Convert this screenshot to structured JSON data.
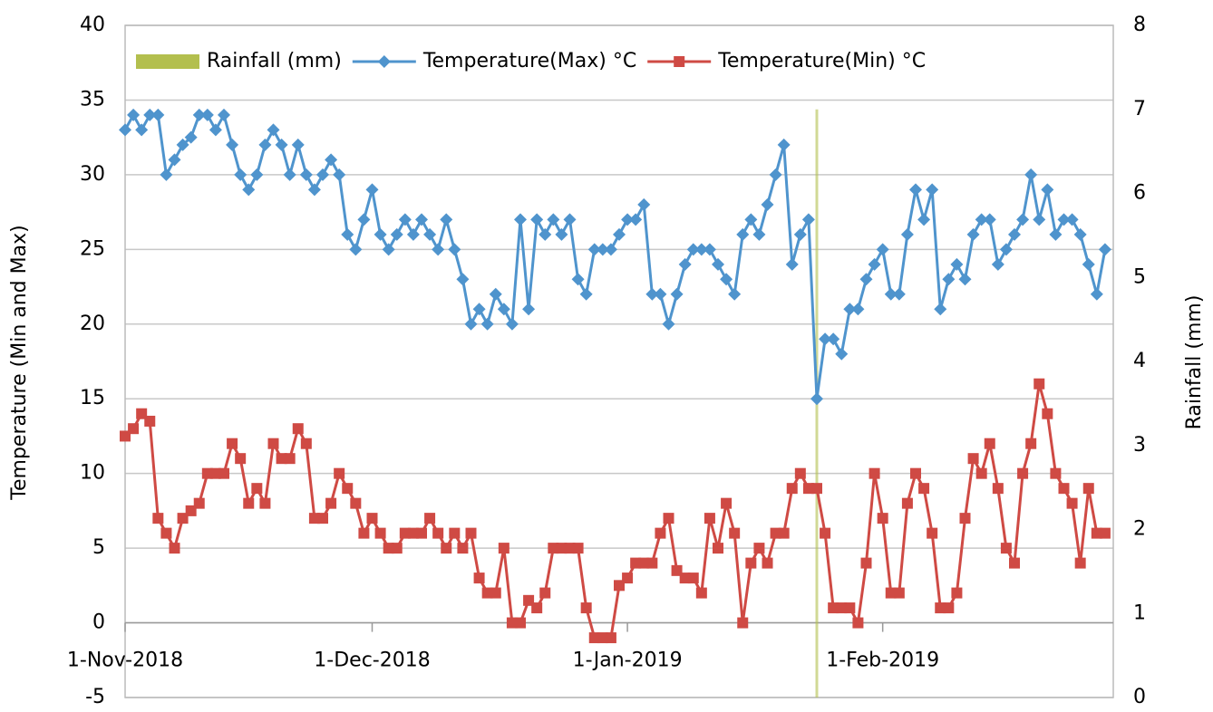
{
  "chart_data": {
    "type": "line",
    "xlabel": null,
    "ylabel": "Temperature (Min and Max)",
    "y2label": "Rainfall (mm)",
    "xlim": [
      0,
      120
    ],
    "xticks": [
      {
        "value": 0,
        "label": "1-Nov-2018"
      },
      {
        "value": 30,
        "label": "1-Dec-2018"
      },
      {
        "value": 61,
        "label": "1-Jan-2019"
      },
      {
        "value": 92,
        "label": "1-Feb-2019"
      }
    ],
    "ylim": [
      -5,
      40
    ],
    "yticks": [
      -5,
      0,
      5,
      10,
      15,
      20,
      25,
      30,
      35,
      40
    ],
    "y2lim": [
      0,
      8
    ],
    "y2ticks": [
      0,
      1,
      2,
      3,
      4,
      5,
      6,
      7,
      8
    ],
    "grid": true,
    "legend": "top",
    "x": [
      0,
      1,
      2,
      3,
      4,
      5,
      6,
      7,
      8,
      9,
      10,
      11,
      12,
      13,
      14,
      15,
      16,
      17,
      18,
      19,
      20,
      21,
      22,
      23,
      24,
      25,
      26,
      27,
      28,
      29,
      30,
      31,
      32,
      33,
      34,
      35,
      36,
      37,
      38,
      39,
      40,
      41,
      42,
      43,
      44,
      45,
      46,
      47,
      48,
      49,
      50,
      51,
      52,
      53,
      54,
      55,
      56,
      57,
      58,
      59,
      60,
      61,
      62,
      63,
      64,
      65,
      66,
      67,
      68,
      69,
      70,
      71,
      72,
      73,
      74,
      75,
      76,
      77,
      78,
      79,
      80,
      81,
      82,
      83,
      84,
      85,
      86,
      87,
      88,
      89,
      90,
      91,
      92,
      93,
      94,
      95,
      96,
      97,
      98,
      99,
      100,
      101,
      102,
      103,
      104,
      105,
      106,
      107,
      108,
      109,
      110,
      111,
      112,
      113,
      114,
      115,
      116,
      117,
      118,
      119
    ],
    "series": [
      {
        "name": "Rainfall (mm)",
        "color": "#b3bf4e",
        "kind": "bar",
        "axis": "y2",
        "x": [
          84
        ],
        "values": [
          7
        ]
      },
      {
        "name": "Temperature(Max) °C",
        "color": "#4f94cd",
        "marker": "diamond",
        "values": [
          33,
          34,
          33,
          34,
          34,
          30,
          31,
          32,
          32.5,
          34,
          34,
          33,
          34,
          32,
          30,
          29,
          30,
          32,
          33,
          32,
          30,
          32,
          30,
          29,
          30,
          31,
          30,
          26,
          25,
          27,
          29,
          26,
          25,
          26,
          27,
          26,
          27,
          26,
          25,
          27,
          25,
          23,
          20,
          21,
          20,
          22,
          21,
          20,
          27,
          21,
          27,
          26,
          27,
          26,
          27,
          23,
          22,
          25,
          25,
          25,
          26,
          27,
          27,
          28,
          22,
          22,
          20,
          22,
          24,
          25,
          25,
          25,
          24,
          23,
          22,
          26,
          27,
          26,
          28,
          30,
          32,
          24,
          26,
          27,
          15,
          19,
          19,
          18,
          21,
          21,
          23,
          24,
          25,
          22,
          22,
          26,
          29,
          27,
          29,
          21,
          23,
          24,
          23,
          26,
          27,
          27,
          24,
          25,
          26,
          27,
          30,
          27,
          29,
          26,
          27,
          27,
          26,
          24,
          22,
          25
        ]
      },
      {
        "name": "Temperature(Min) °C",
        "color": "#cf4a44",
        "marker": "square",
        "values": [
          12.5,
          13,
          14,
          13.5,
          7,
          6,
          5,
          7,
          7.5,
          8,
          10,
          10,
          10,
          12,
          11,
          8,
          9,
          8,
          12,
          11,
          11,
          13,
          12,
          7,
          7,
          8,
          10,
          9,
          8,
          6,
          7,
          6,
          5,
          5,
          6,
          6,
          6,
          7,
          6,
          5,
          6,
          5,
          6,
          3,
          2,
          2,
          5,
          0,
          0,
          1.5,
          1,
          2,
          5,
          5,
          5,
          5,
          1,
          -1,
          -1,
          -1,
          2.5,
          3,
          4,
          4,
          4,
          6,
          7,
          3.5,
          3,
          3,
          2,
          7,
          5,
          8,
          6,
          0,
          4,
          5,
          4,
          6,
          6,
          9,
          10,
          9,
          9,
          6,
          1,
          1,
          1,
          0,
          4,
          10,
          7,
          2,
          2,
          8,
          10,
          9,
          6,
          1,
          1,
          2,
          7,
          11,
          10,
          12,
          9,
          5,
          4,
          10,
          12,
          16,
          14,
          10,
          9,
          8,
          4,
          9,
          6,
          6
        ]
      }
    ]
  }
}
